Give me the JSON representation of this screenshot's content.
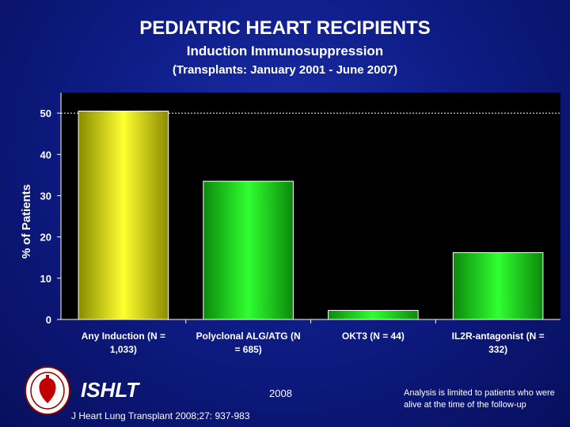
{
  "header": {
    "title": "PEDIATRIC HEART RECIPIENTS",
    "subtitle": "Induction Immunosuppression",
    "subtitle2": "(Transplants: January 2001 - June 2007)"
  },
  "chart_data": {
    "type": "bar",
    "ylabel": "% of Patients",
    "ylim": [
      0,
      55
    ],
    "yticks": [
      0,
      10,
      20,
      30,
      40,
      50
    ],
    "reference_line": 50,
    "categories": [
      [
        "Any Induction (N =",
        "1,033)"
      ],
      [
        "Polyclonal ALG/ATG (N",
        "= 685)"
      ],
      [
        "OKT3 (N = 44)"
      ],
      [
        "IL2R-antagonist (N =",
        "332)"
      ]
    ],
    "values": [
      50.5,
      33.5,
      2.2,
      16.2
    ],
    "colors": [
      "#f0f000",
      "#1edc1e",
      "#1edc1e",
      "#1edc1e"
    ]
  },
  "footer": {
    "brand": "ISHLT",
    "year": "2008",
    "citation": "J Heart Lung Transplant 2008;27: 937-983",
    "note": "Analysis is limited to patients who were alive at the time of the follow-up"
  }
}
